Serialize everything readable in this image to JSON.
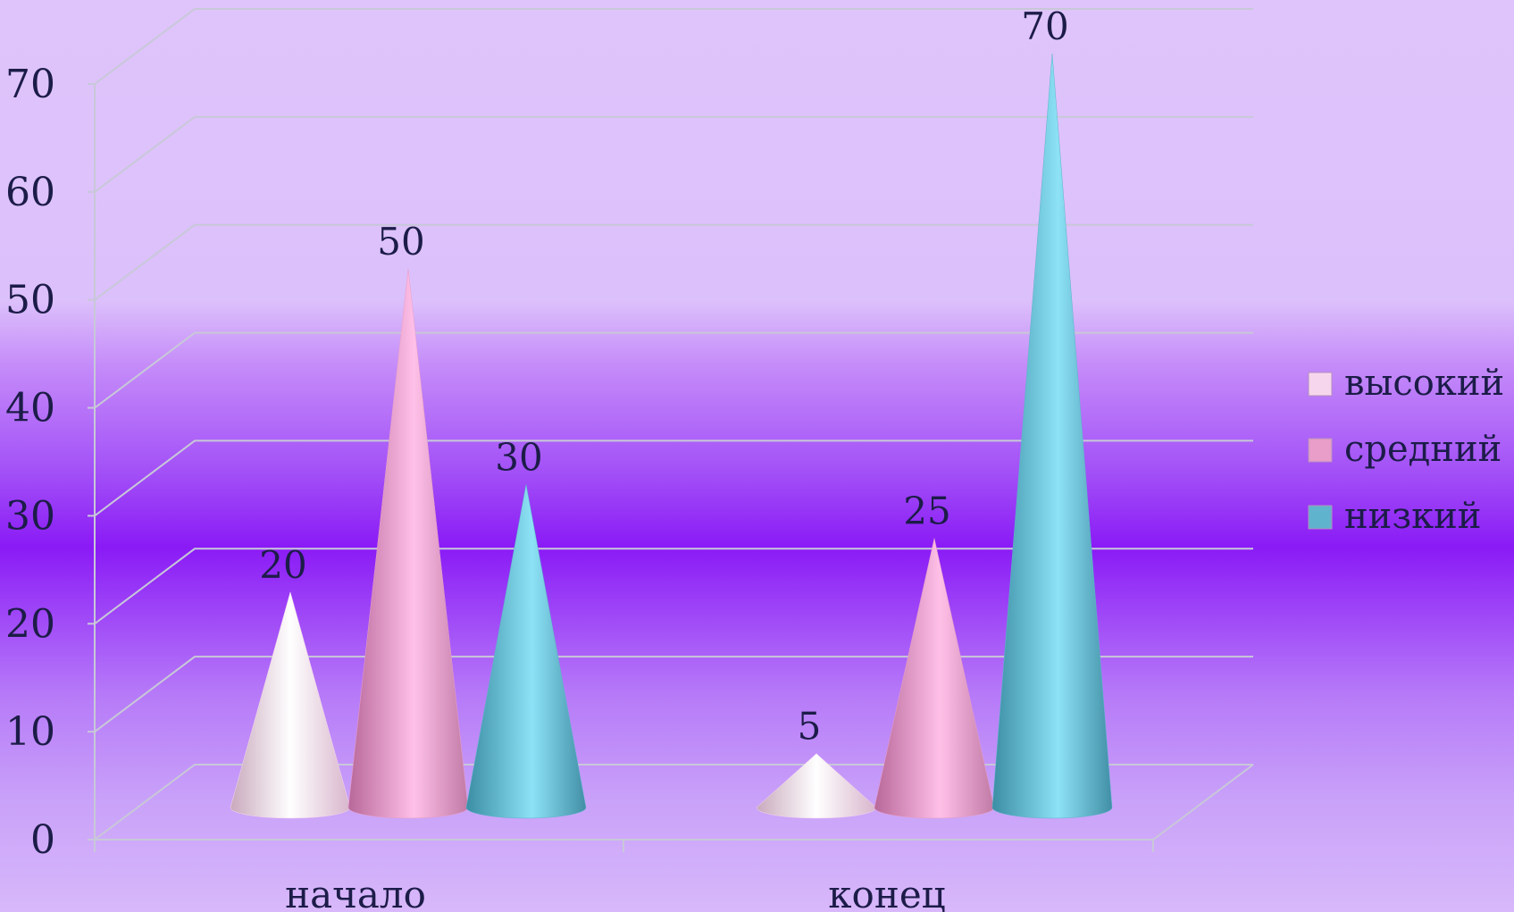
{
  "chart_data": {
    "type": "bar",
    "bar_shape": "cone-3d",
    "title": "",
    "xlabel": "",
    "ylabel": "",
    "categories": [
      "начало",
      "конец"
    ],
    "ylim": [
      0,
      70
    ],
    "yticks": [
      "0",
      "10",
      "20",
      "30",
      "40",
      "50",
      "60",
      "70"
    ],
    "grid": true,
    "legend_position": "right",
    "series": [
      {
        "name": "высокий",
        "values": [
          20,
          5
        ],
        "color": "#f6d6ec"
      },
      {
        "name": "средний",
        "values": [
          50,
          25
        ],
        "color": "#e89ec9"
      },
      {
        "name": "низкий",
        "values": [
          30,
          70
        ],
        "color": "#5fb3cc"
      }
    ],
    "data_labels": [
      "20",
      "5",
      "50",
      "25",
      "30",
      "70"
    ]
  }
}
